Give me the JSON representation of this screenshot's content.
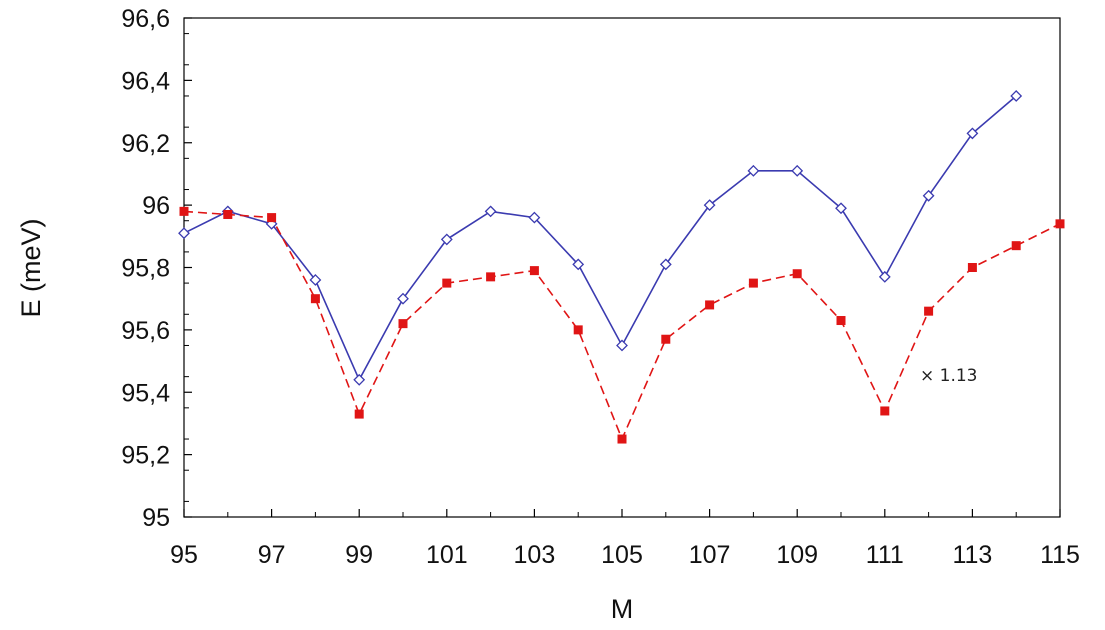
{
  "chart_data": {
    "type": "line",
    "title": "",
    "xlabel": "M",
    "ylabel": "E (meV)",
    "xlim": [
      95,
      115
    ],
    "ylim": [
      95,
      96.6
    ],
    "x_ticks": [
      "95",
      "97",
      "99",
      "101",
      "103",
      "105",
      "107",
      "109",
      "111",
      "113",
      "115"
    ],
    "y_ticks": [
      "95",
      "95,2",
      "95,4",
      "95,6",
      "95,8",
      "96",
      "96,2",
      "96,4",
      "96,6"
    ],
    "grid": false,
    "legend": "none",
    "annotation": "× 1.13",
    "series": [
      {
        "color": "#3b3bb0",
        "line_style": "solid",
        "marker": "open-diamond",
        "x": [
          95,
          96,
          97,
          98,
          99,
          100,
          101,
          102,
          103,
          104,
          105,
          106,
          107,
          108,
          109,
          110,
          111,
          112,
          113,
          114
        ],
        "y": [
          95.91,
          95.98,
          95.94,
          95.76,
          95.44,
          95.7,
          95.89,
          95.98,
          95.96,
          95.81,
          95.55,
          95.81,
          96.0,
          96.11,
          96.11,
          95.99,
          95.77,
          96.03,
          96.23,
          96.35
        ]
      },
      {
        "color": "#e01515",
        "line_style": "dashed",
        "marker": "filled-square",
        "x": [
          95,
          96,
          97,
          98,
          99,
          100,
          101,
          102,
          103,
          104,
          105,
          106,
          107,
          108,
          109,
          110,
          111,
          112,
          113,
          114,
          115
        ],
        "y": [
          95.98,
          95.97,
          95.96,
          95.7,
          95.33,
          95.62,
          95.75,
          95.77,
          95.79,
          95.6,
          95.25,
          95.57,
          95.68,
          95.75,
          95.78,
          95.63,
          95.34,
          95.66,
          95.8,
          95.87,
          95.94
        ]
      }
    ]
  }
}
